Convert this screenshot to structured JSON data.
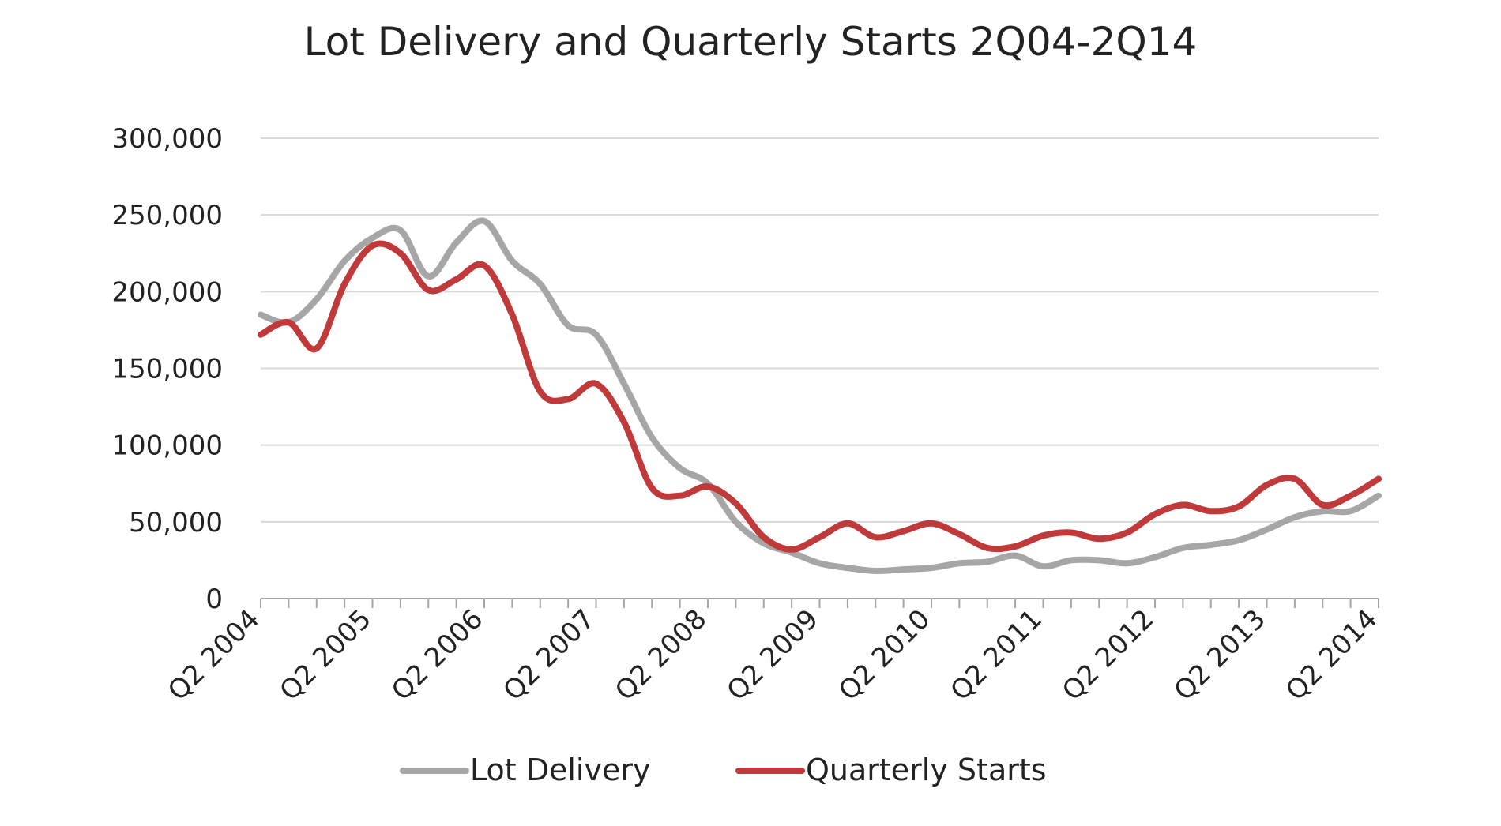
{
  "chart_data": {
    "type": "line",
    "title": "Lot Delivery and Quarterly Starts 2Q04-2Q14",
    "xlabel": "",
    "ylabel": "",
    "ylim": [
      0,
      300000
    ],
    "y_ticks": [
      0,
      50000,
      100000,
      150000,
      200000,
      250000,
      300000
    ],
    "y_tick_labels": [
      "0",
      "50,000",
      "100,000",
      "150,000",
      "200,000",
      "250,000",
      "300,000"
    ],
    "x_tick_labels": [
      "Q2 2004",
      "Q2 2005",
      "Q2 2006",
      "Q2 2007",
      "Q2 2008",
      "Q2 2009",
      "Q2 2010",
      "Q2 2011",
      "Q2 2012",
      "Q2 2013",
      "Q2 2014"
    ],
    "x": [
      "Q2 2004",
      "Q3 2004",
      "Q4 2004",
      "Q1 2005",
      "Q2 2005",
      "Q3 2005",
      "Q4 2005",
      "Q1 2006",
      "Q2 2006",
      "Q3 2006",
      "Q4 2006",
      "Q1 2007",
      "Q2 2007",
      "Q3 2007",
      "Q4 2007",
      "Q1 2008",
      "Q2 2008",
      "Q3 2008",
      "Q4 2008",
      "Q1 2009",
      "Q2 2009",
      "Q3 2009",
      "Q4 2009",
      "Q1 2010",
      "Q2 2010",
      "Q3 2010",
      "Q4 2010",
      "Q1 2011",
      "Q2 2011",
      "Q3 2011",
      "Q4 2011",
      "Q1 2012",
      "Q2 2012",
      "Q3 2012",
      "Q4 2012",
      "Q1 2013",
      "Q2 2013",
      "Q3 2013",
      "Q4 2013",
      "Q1 2014",
      "Q2 2014"
    ],
    "grid": true,
    "legend_position": "bottom",
    "series": [
      {
        "name": "Lot Delivery",
        "color": "#a6a6a6",
        "values": [
          185000,
          180000,
          195000,
          220000,
          235000,
          240000,
          210000,
          232000,
          246000,
          220000,
          205000,
          178000,
          172000,
          140000,
          105000,
          85000,
          75000,
          50000,
          36000,
          30000,
          23000,
          20000,
          18000,
          19000,
          20000,
          23000,
          24000,
          28000,
          21000,
          25000,
          25000,
          23000,
          27000,
          33000,
          35000,
          38000,
          45000,
          53000,
          57000,
          57000,
          67000
        ]
      },
      {
        "name": "Quarterly Starts",
        "color": "#c0393b",
        "values": [
          172000,
          180000,
          163000,
          205000,
          230000,
          225000,
          201000,
          208000,
          217000,
          185000,
          135000,
          130000,
          140000,
          115000,
          72000,
          67000,
          73000,
          62000,
          40000,
          32000,
          40000,
          49000,
          40000,
          44000,
          49000,
          42000,
          33000,
          34000,
          41000,
          43000,
          39000,
          43000,
          55000,
          61000,
          57000,
          60000,
          74000,
          78000,
          61000,
          67000,
          78000
        ]
      }
    ]
  }
}
